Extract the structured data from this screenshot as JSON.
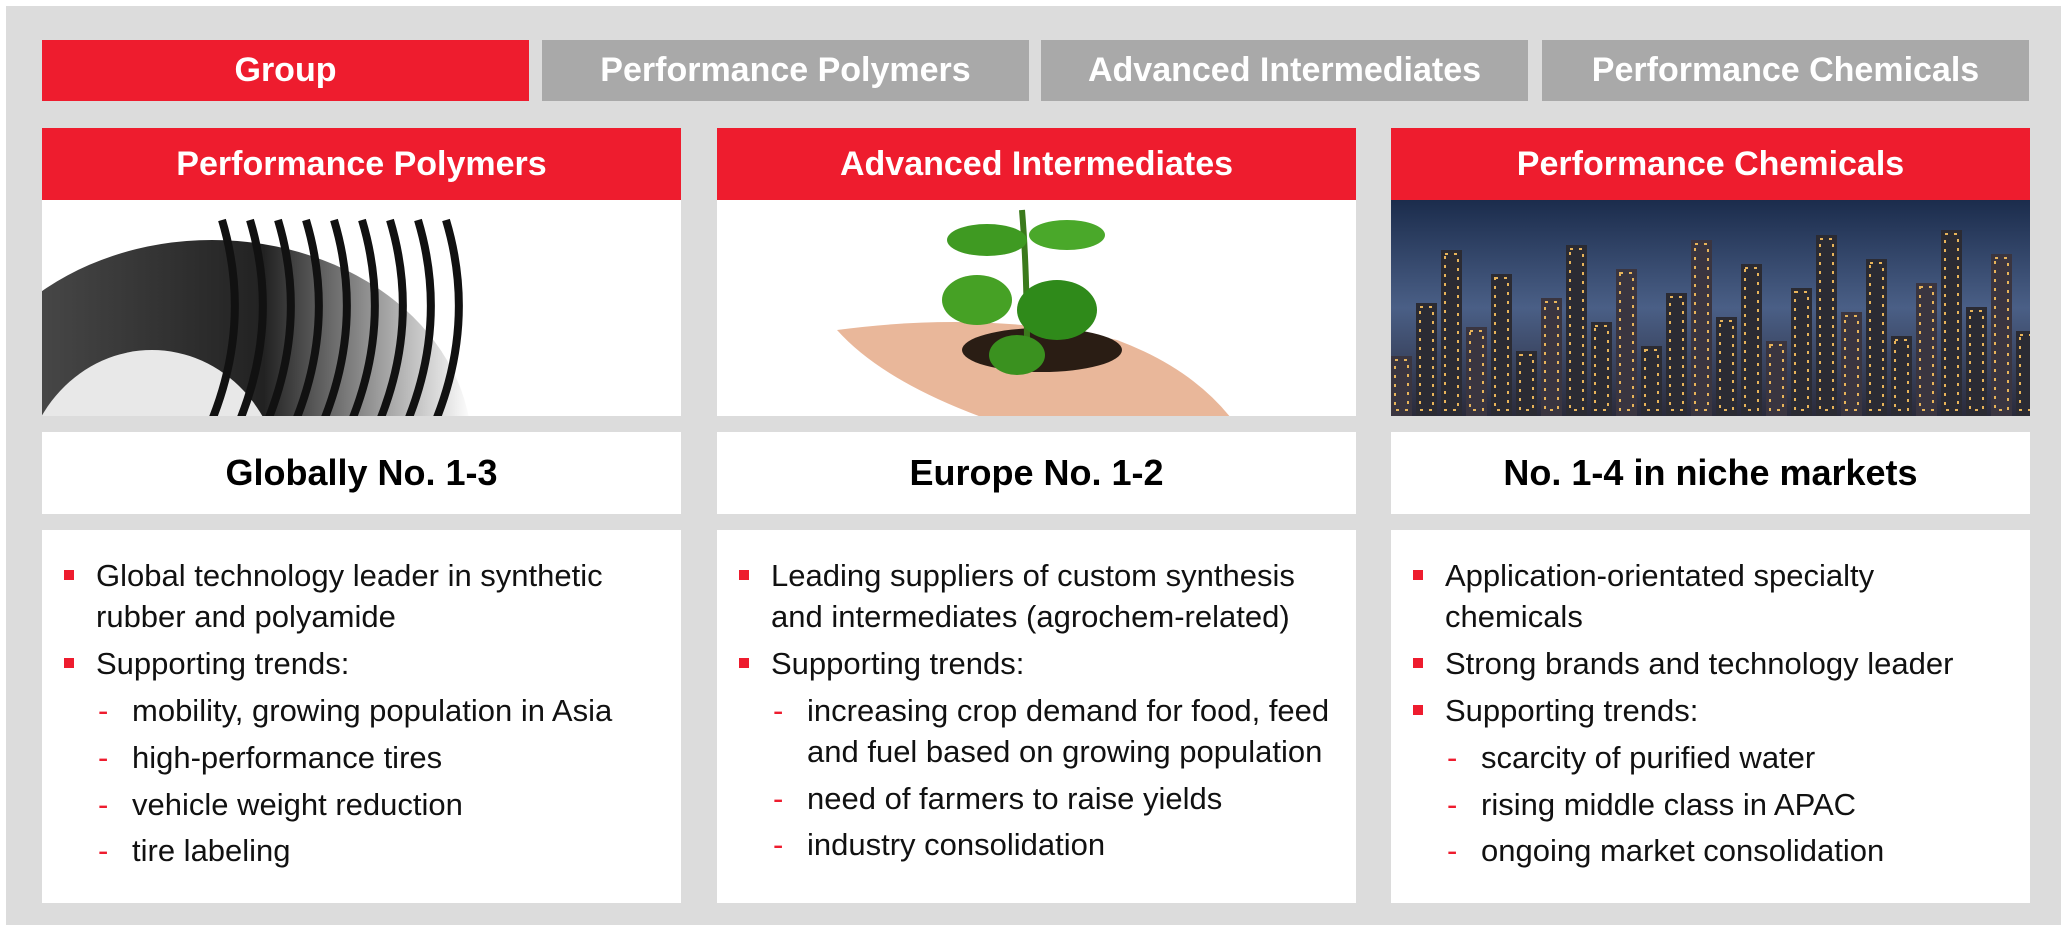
{
  "tabs": [
    "Group",
    "Performance Polymers",
    "Advanced Intermediates",
    "Performance Chemicals"
  ],
  "active_tab": 0,
  "columns": [
    {
      "title": "Performance Polymers",
      "rank": "Globally No. 1-3",
      "bullets": [
        {
          "text": "Global technology leader in synthetic rubber and polyamide"
        },
        {
          "text": "Supporting trends:",
          "sub": [
            "mobility, growing population in Asia",
            "high-performance tires",
            "vehicle weight reduction",
            "tire labeling"
          ]
        }
      ]
    },
    {
      "title": "Advanced Intermediates",
      "rank": "Europe No. 1-2",
      "bullets": [
        {
          "text": "Leading suppliers of custom synthesis and intermediates (agrochem-related)"
        },
        {
          "text": "Supporting trends:",
          "sub": [
            "increasing crop demand for food, feed and fuel based on growing population",
            "need of farmers to raise yields",
            "industry consolidation"
          ]
        }
      ]
    },
    {
      "title": "Performance Chemicals",
      "rank": "No. 1-4 in niche markets",
      "bullets": [
        {
          "text": "Application-orientated specialty chemicals"
        },
        {
          "text": "Strong brands and technology leader"
        },
        {
          "text": "Supporting trends:",
          "sub": [
            "scarcity of purified water",
            "rising middle class in APAC",
            "ongoing market consolidation"
          ]
        }
      ]
    }
  ]
}
